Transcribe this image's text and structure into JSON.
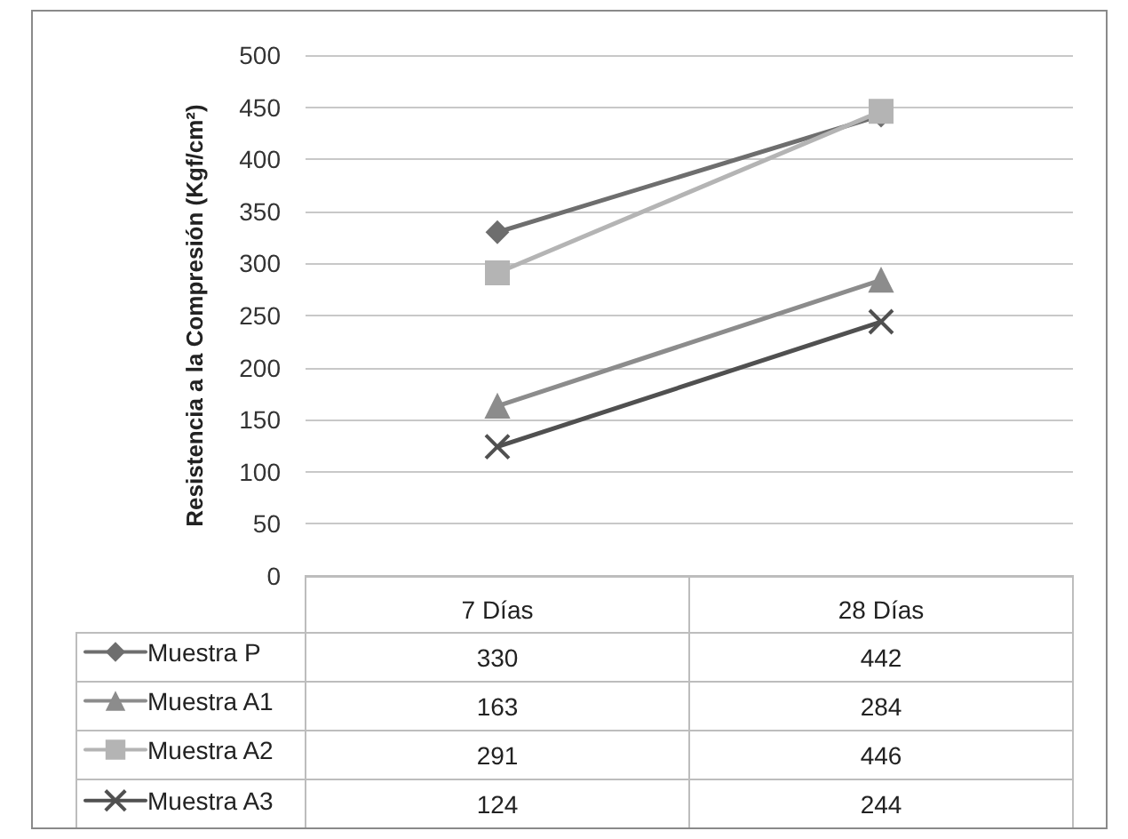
{
  "chart_data": {
    "type": "line",
    "ylabel": "Resistencia a la Compresión (Kgf/cm²)",
    "categories": [
      "7 Días",
      "28 Días"
    ],
    "series": [
      {
        "name": "Muestra P",
        "color": "#6e6e6e",
        "marker": "diamond",
        "values": [
          330,
          442
        ]
      },
      {
        "name": "Muestra A1",
        "color": "#8c8c8c",
        "marker": "triangle",
        "values": [
          163,
          284
        ]
      },
      {
        "name": "Muestra A2",
        "color": "#b4b4b4",
        "marker": "square",
        "values": [
          291,
          446
        ]
      },
      {
        "name": "Muestra A3",
        "color": "#505050",
        "marker": "cross",
        "values": [
          124,
          244
        ]
      }
    ],
    "ylim": [
      0,
      500
    ],
    "yticks": [
      0,
      50,
      100,
      150,
      200,
      250,
      300,
      350,
      400,
      450,
      500
    ],
    "grid": "y",
    "legend": "bottom",
    "data_labels": true
  }
}
